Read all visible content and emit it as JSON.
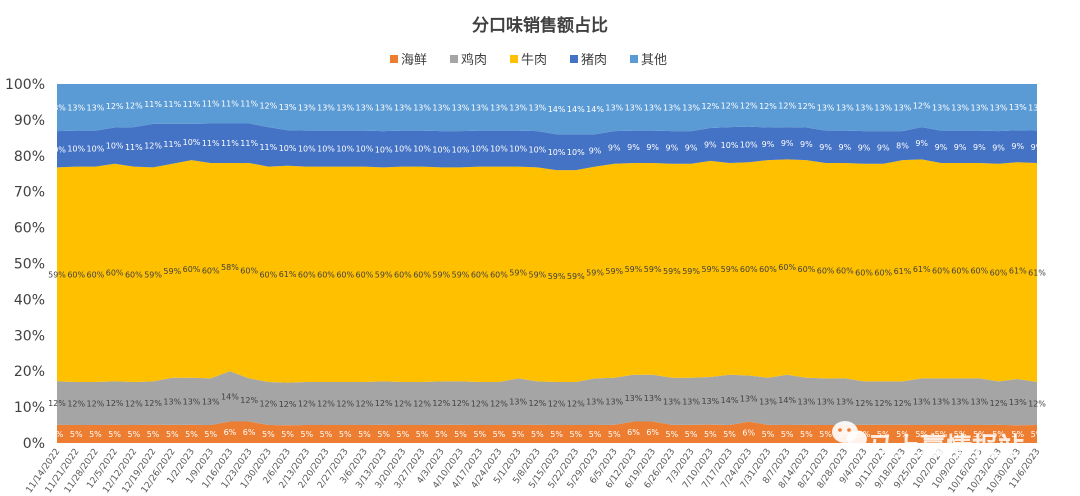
{
  "chart_data": {
    "type": "area",
    "stacking": "percent",
    "title": "分口味销售额占比",
    "legend": {
      "placement": "top"
    },
    "yticks": [
      "0%",
      "10%",
      "20%",
      "30%",
      "40%",
      "50%",
      "60%",
      "70%",
      "80%",
      "90%",
      "100%"
    ],
    "ylim": [
      0,
      100
    ],
    "grid": false,
    "categories": [
      "11/14/2022",
      "11/21/2022",
      "11/28/2022",
      "12/5/2022",
      "12/12/2022",
      "12/19/2022",
      "12/26/2022",
      "1/2/2023",
      "1/9/2023",
      "1/16/2023",
      "1/23/2023",
      "1/30/2023",
      "2/6/2023",
      "2/13/2023",
      "2/20/2023",
      "2/27/2023",
      "3/6/2023",
      "3/13/2023",
      "3/20/2023",
      "3/27/2023",
      "4/3/2023",
      "4/10/2023",
      "4/17/2023",
      "4/24/2023",
      "5/1/2023",
      "5/8/2023",
      "5/15/2023",
      "5/22/2023",
      "5/29/2023",
      "6/5/2023",
      "6/12/2023",
      "6/19/2023",
      "6/26/2023",
      "7/3/2023",
      "7/10/2023",
      "7/17/2023",
      "7/24/2023",
      "7/31/2023",
      "8/7/2023",
      "8/14/2023",
      "8/21/2023",
      "8/28/2023",
      "9/4/2023",
      "9/11/2023",
      "9/18/2023",
      "9/25/2023",
      "10/2/2023",
      "10/9/2023",
      "10/16/2023",
      "10/23/2023",
      "10/30/2023",
      "11/6/2023"
    ],
    "series": [
      {
        "name": "海鲜",
        "color": "#ED7D31",
        "labelColor": "#ffffff",
        "values": [
          5,
          5,
          5,
          5,
          5,
          5,
          5,
          5,
          5,
          6,
          6,
          5,
          5,
          5,
          5,
          5,
          5,
          5,
          5,
          5,
          5,
          5,
          5,
          5,
          5,
          5,
          5,
          5,
          5,
          5,
          6,
          6,
          5,
          5,
          5,
          5,
          6,
          5,
          5,
          5,
          5,
          5,
          5,
          5,
          5,
          5,
          5,
          5,
          5,
          5,
          5,
          5
        ]
      },
      {
        "name": "鸡肉",
        "color": "#A5A5A5",
        "labelColor": "#404040",
        "values": [
          12,
          12,
          12,
          12,
          12,
          12,
          13,
          13,
          13,
          14,
          12,
          12,
          12,
          12,
          12,
          12,
          12,
          12,
          12,
          12,
          12,
          12,
          12,
          12,
          13,
          12,
          12,
          12,
          13,
          13,
          13,
          13,
          13,
          13,
          13,
          14,
          13,
          13,
          14,
          13,
          13,
          13,
          12,
          12,
          12,
          13,
          13,
          13,
          13,
          12,
          13,
          12
        ]
      },
      {
        "name": "牛肉",
        "color": "#FFC000",
        "labelColor": "#404040",
        "values": [
          59,
          60,
          60,
          60,
          60,
          59,
          59,
          60,
          60,
          58,
          60,
          60,
          61,
          60,
          60,
          60,
          60,
          59,
          60,
          60,
          59,
          59,
          60,
          60,
          59,
          59,
          59,
          59,
          59,
          59,
          59,
          59,
          59,
          59,
          59,
          59,
          60,
          60,
          60,
          60,
          60,
          60,
          60,
          60,
          61,
          61,
          60,
          60,
          60,
          60,
          61,
          61
        ]
      },
      {
        "name": "猪肉",
        "color": "#4472C4",
        "labelColor": "#ffffff",
        "values": [
          10,
          10,
          10,
          10,
          11,
          12,
          11,
          10,
          11,
          11,
          11,
          11,
          10,
          10,
          10,
          10,
          10,
          10,
          10,
          10,
          10,
          10,
          10,
          10,
          10,
          10,
          10,
          10,
          9,
          9,
          9,
          9,
          9,
          9,
          9,
          10,
          10,
          9,
          9,
          9,
          9,
          9,
          9,
          9,
          8,
          9,
          9,
          9,
          9,
          9,
          9,
          9
        ]
      },
      {
        "name": "其他",
        "color": "#5B9BD5",
        "labelColor": "#ffffff",
        "values": [
          13,
          13,
          13,
          12,
          12,
          11,
          11,
          11,
          11,
          11,
          11,
          12,
          13,
          13,
          13,
          13,
          13,
          13,
          13,
          13,
          13,
          13,
          13,
          13,
          13,
          13,
          14,
          14,
          14,
          13,
          13,
          13,
          13,
          13,
          12,
          12,
          12,
          12,
          12,
          12,
          13,
          13,
          13,
          13,
          13,
          12,
          13,
          13,
          13,
          13,
          13,
          13
        ]
      }
    ]
  },
  "watermark": {
    "text": "马上赢情报站",
    "icon": "wechat-icon"
  }
}
